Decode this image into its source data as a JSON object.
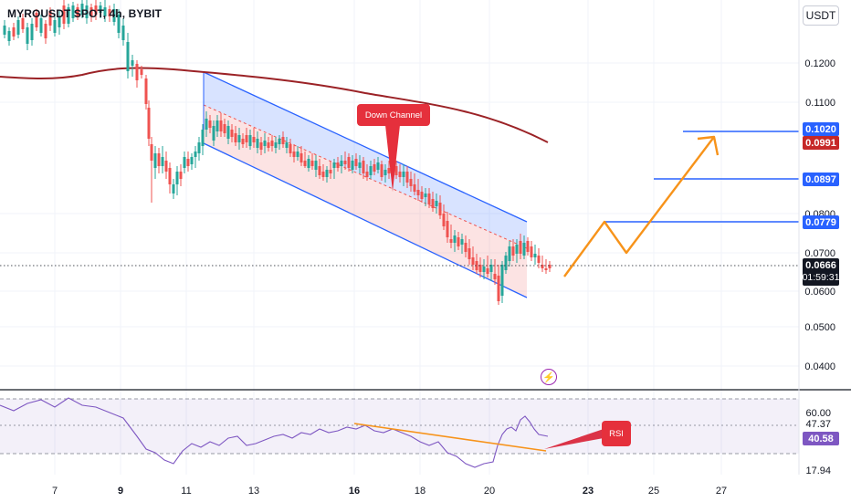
{
  "header": {
    "symbol_title": "MYROUSDT SPOT, 4h, BYBIT",
    "currency": "USDT"
  },
  "price_axis": {
    "ticks": [
      "0.1200",
      "0.1100",
      "0.0800",
      "0.0700",
      "0.0600",
      "0.0500",
      "0.0400"
    ]
  },
  "price_tags": {
    "t1020": "0.1020",
    "t0991": "0.0991",
    "t0897": "0.0897",
    "t0779": "0.0779",
    "current_price": "0.0666",
    "countdown": "01:59:31"
  },
  "rsi_axis": {
    "ticks": [
      "60.00",
      "47.37",
      "17.94"
    ],
    "current": "40.58"
  },
  "time_axis": {
    "labels": [
      "7",
      "9",
      "11",
      "13",
      "16",
      "18",
      "20",
      "23",
      "25",
      "27"
    ]
  },
  "annotations": {
    "down_channel": "Down Channel",
    "rsi": "RSI"
  },
  "colors": {
    "up": "#26a69a",
    "down": "#ef5350",
    "ma": "#9b2226",
    "channel_line": "#2962ff",
    "projection": "#f7931a",
    "rsi_line": "#7e57c2",
    "callout": "#e5303c"
  }
}
